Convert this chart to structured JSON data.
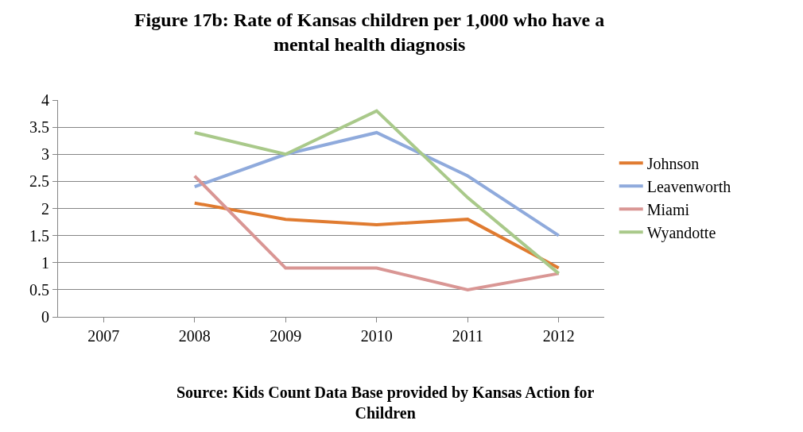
{
  "chart_data": {
    "type": "line",
    "title": "Figure 17b: Rate of Kansas children per 1,000 who have a\nmental health diagnosis",
    "categories": [
      "2007",
      "2008",
      "2009",
      "2010",
      "2011",
      "2012"
    ],
    "series": [
      {
        "name": "Johnson",
        "color": "#e07b30",
        "values": [
          null,
          2.1,
          1.8,
          1.7,
          1.8,
          0.9
        ]
      },
      {
        "name": "Leavenworth",
        "color": "#8faadc",
        "values": [
          null,
          2.4,
          3.0,
          3.4,
          2.6,
          1.5
        ]
      },
      {
        "name": "Miami",
        "color": "#d99694",
        "values": [
          null,
          2.6,
          0.9,
          0.9,
          0.5,
          0.8
        ]
      },
      {
        "name": "Wyandotte",
        "color": "#a9c98a",
        "values": [
          null,
          3.4,
          3.0,
          3.8,
          2.2,
          0.8
        ]
      }
    ],
    "ylim": [
      0,
      4
    ],
    "yticks": [
      0,
      0.5,
      1,
      1.5,
      2,
      2.5,
      3,
      3.5,
      4
    ],
    "grid": "y",
    "legend": "right",
    "marker": "none",
    "line_style": "solid",
    "annotations": [
      "Source: Kids Count Data Base provided by Kansas Action for\nChildren"
    ]
  }
}
